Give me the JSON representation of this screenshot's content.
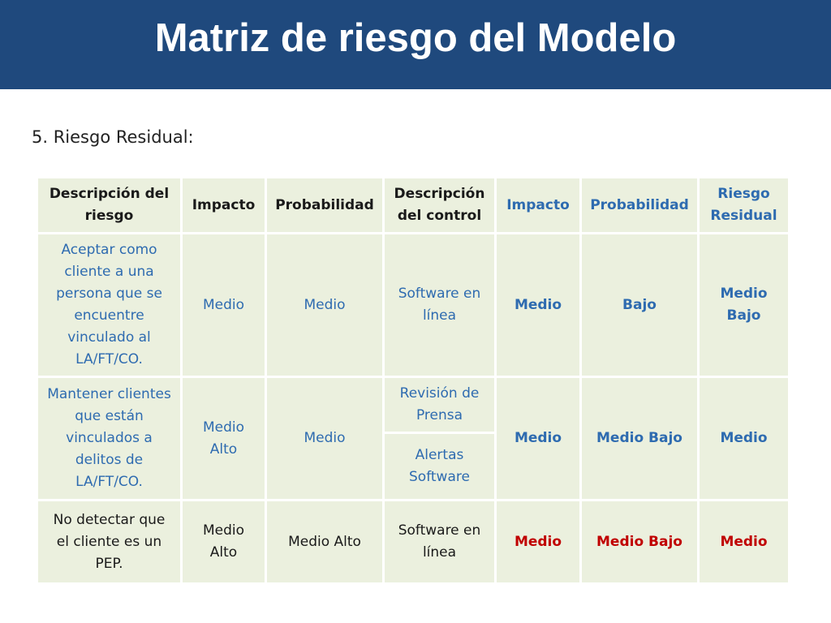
{
  "title": "Matriz de riesgo del Modelo",
  "subtitle": "5. Riesgo Residual:",
  "colors": {
    "title_bar": "#1f497d",
    "cell_bg": "#ebf0de",
    "blue": "#2e6bb0",
    "red": "#c00000"
  },
  "table": {
    "headers": [
      "Descripción del riesgo",
      "Impacto",
      "Probabilidad",
      "Descripción del control",
      "Impacto",
      "Probabilidad",
      "Riesgo Residual"
    ],
    "rows": [
      {
        "descripcion_riesgo": "Aceptar como cliente a una persona que se encuentre vinculado al LA/FT/CO.",
        "impacto": "Medio",
        "probabilidad": "Medio",
        "controles": [
          "Software en línea"
        ],
        "impacto_residual": "Medio",
        "probabilidad_residual": "Bajo",
        "riesgo_residual": "Medio Bajo"
      },
      {
        "descripcion_riesgo": "Mantener clientes que están vinculados a delitos de LA/FT/CO.",
        "impacto": "Medio Alto",
        "probabilidad": "Medio",
        "controles": [
          "Revisión de Prensa",
          "Alertas Software"
        ],
        "impacto_residual": "Medio",
        "probabilidad_residual": "Medio Bajo",
        "riesgo_residual": "Medio"
      },
      {
        "descripcion_riesgo": "No detectar que el cliente es un PEP.",
        "impacto": "Medio Alto",
        "probabilidad": "Medio Alto",
        "controles": [
          "Software en línea"
        ],
        "impacto_residual": "Medio",
        "probabilidad_residual": "Medio Bajo",
        "riesgo_residual": "Medio"
      }
    ]
  }
}
